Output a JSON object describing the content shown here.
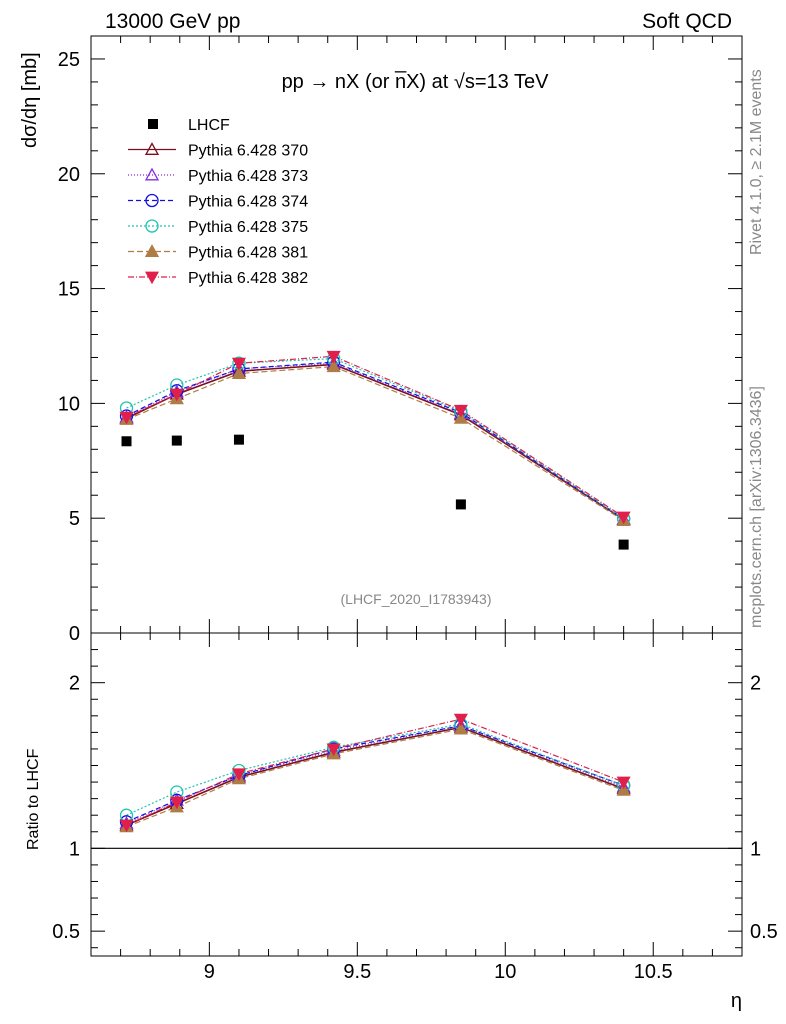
{
  "header": {
    "left": "13000 GeV pp",
    "right": "Soft QCD"
  },
  "side_labels": {
    "rivet": "Rivet 4.1.0, ≥ 2.1M events",
    "mcplots": "mcplots.cern.ch [arXiv:1306.3436]"
  },
  "chart_data": {
    "type": "scatter",
    "title": "pp → nX (or n̅X) at √s=13 TeV",
    "analysis_id": "(LHCF_2020_I1783943)",
    "xlabel": "η",
    "ylabel": "dσ/dη [mb]",
    "ratio_ylabel": "Ratio to LHCF",
    "xlim": [
      8.6,
      10.8
    ],
    "ylim": [
      0,
      26
    ],
    "ratio_ylim": [
      0.35,
      2.3
    ],
    "x_ticks": [
      9,
      9.5,
      10,
      10.5
    ],
    "x_tick_labels": [
      "9",
      "9.5",
      "10",
      "10.5"
    ],
    "y_ticks": [
      0,
      5,
      10,
      15,
      20,
      25
    ],
    "y_tick_labels": [
      "0",
      "5",
      "10",
      "15",
      "20",
      "25"
    ],
    "ratio_ticks": [
      0.5,
      1,
      2
    ],
    "ratio_tick_labels": [
      "0.5",
      "1",
      "2"
    ],
    "x": [
      8.72,
      8.89,
      9.1,
      9.42,
      9.85,
      10.4
    ],
    "data": {
      "name": "LHCF",
      "values": [
        8.35,
        8.38,
        8.42,
        null,
        5.6,
        3.85
      ]
    },
    "series": [
      {
        "name": "Pythia 6.428 370",
        "color": "#7a0f1d",
        "marker": "triangle-open",
        "dash": "",
        "values": [
          9.35,
          10.4,
          11.4,
          11.7,
          9.5,
          4.95
        ],
        "ratio": [
          1.14,
          1.27,
          1.43,
          1.58,
          1.73,
          1.36
        ]
      },
      {
        "name": "Pythia 6.428 373",
        "color": "#8a2be2",
        "marker": "triangle-open",
        "dash": "1,2",
        "values": [
          9.4,
          10.5,
          11.5,
          11.75,
          9.55,
          4.95
        ],
        "ratio": [
          1.15,
          1.29,
          1.44,
          1.59,
          1.74,
          1.37
        ]
      },
      {
        "name": "Pythia 6.428 374",
        "color": "#1010e0",
        "marker": "circle-open",
        "dash": "5,3",
        "values": [
          9.45,
          10.55,
          11.5,
          11.8,
          9.6,
          4.98
        ],
        "ratio": [
          1.16,
          1.29,
          1.44,
          1.6,
          1.74,
          1.38
        ]
      },
      {
        "name": "Pythia 6.428 375",
        "color": "#20c4b0",
        "marker": "circle-open",
        "dash": "2,2",
        "values": [
          9.8,
          10.8,
          11.75,
          11.95,
          9.65,
          4.98
        ],
        "ratio": [
          1.2,
          1.34,
          1.47,
          1.61,
          1.75,
          1.38
        ]
      },
      {
        "name": "Pythia 6.428 381",
        "color": "#b07c45",
        "marker": "triangle-filled",
        "dash": "6,3",
        "values": [
          9.3,
          10.2,
          11.3,
          11.6,
          9.35,
          4.9
        ],
        "ratio": [
          1.13,
          1.25,
          1.42,
          1.57,
          1.72,
          1.35
        ]
      },
      {
        "name": "Pythia 6.428 382",
        "color": "#e0204a",
        "marker": "triangle-down-filled",
        "dash": "6,2,1,2",
        "values": [
          9.4,
          10.4,
          11.75,
          12.05,
          9.7,
          5.05
        ],
        "ratio": [
          1.14,
          1.28,
          1.45,
          1.6,
          1.78,
          1.4
        ]
      }
    ]
  }
}
